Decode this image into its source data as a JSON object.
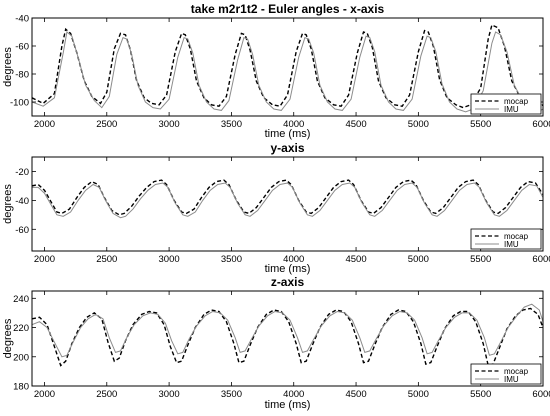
{
  "chart_data": [
    {
      "type": "line",
      "title": "take m2r1t2 - Euler angles - x-axis",
      "xlabel": "time (ms)",
      "ylabel": "degrees",
      "xlim": [
        1900,
        6000
      ],
      "ylim": [
        -110,
        -40
      ],
      "xticks": [
        2000,
        2500,
        3000,
        3500,
        4000,
        4500,
        5000,
        5500,
        6000
      ],
      "yticks": [
        -100,
        -80,
        -60,
        -40
      ],
      "grid": false,
      "legend": {
        "position": "bottom-right",
        "entries": [
          "mocap",
          "IMU"
        ]
      },
      "series": [
        {
          "name": "mocap",
          "style": "dashed",
          "x": [
            1900,
            1990,
            2080,
            2140,
            2170,
            2210,
            2260,
            2320,
            2380,
            2450,
            2500,
            2560,
            2610,
            2650,
            2690,
            2740,
            2800,
            2860,
            2920,
            2980,
            3050,
            3100,
            3130,
            3170,
            3220,
            3280,
            3340,
            3400,
            3460,
            3530,
            3580,
            3610,
            3650,
            3700,
            3760,
            3830,
            3890,
            3950,
            4020,
            4070,
            4100,
            4140,
            4190,
            4250,
            4320,
            4380,
            4440,
            4510,
            4560,
            4590,
            4630,
            4680,
            4740,
            4810,
            4870,
            4930,
            5000,
            5050,
            5080,
            5120,
            5170,
            5230,
            5300,
            5360,
            5420,
            5500,
            5560,
            5590,
            5640,
            5690,
            5750,
            5820,
            5880,
            5950,
            6000
          ],
          "y": [
            -97,
            -101,
            -94,
            -60,
            -48,
            -51,
            -65,
            -85,
            -96,
            -101,
            -93,
            -62,
            -51,
            -52,
            -63,
            -85,
            -97,
            -101,
            -102,
            -95,
            -64,
            -51,
            -52,
            -62,
            -85,
            -97,
            -102,
            -103,
            -96,
            -66,
            -51,
            -52,
            -63,
            -85,
            -97,
            -102,
            -103,
            -95,
            -64,
            -51,
            -52,
            -62,
            -85,
            -97,
            -102,
            -103,
            -95,
            -65,
            -50,
            -51,
            -61,
            -85,
            -97,
            -102,
            -103,
            -95,
            -64,
            -49,
            -50,
            -60,
            -84,
            -97,
            -102,
            -104,
            -102,
            -90,
            -55,
            -45,
            -47,
            -60,
            -85,
            -97,
            -102,
            -104,
            -102
          ]
        },
        {
          "name": "IMU",
          "style": "solid",
          "x": [
            1900,
            1990,
            2080,
            2150,
            2180,
            2220,
            2270,
            2330,
            2400,
            2460,
            2520,
            2580,
            2630,
            2660,
            2700,
            2750,
            2810,
            2870,
            2930,
            3000,
            3070,
            3120,
            3150,
            3190,
            3240,
            3300,
            3360,
            3420,
            3480,
            3550,
            3600,
            3630,
            3670,
            3720,
            3780,
            3840,
            3900,
            3970,
            4040,
            4090,
            4120,
            4160,
            4210,
            4270,
            4330,
            4390,
            4460,
            4530,
            4580,
            4610,
            4650,
            4700,
            4760,
            4820,
            4880,
            4950,
            5020,
            5070,
            5100,
            5140,
            5190,
            5250,
            5310,
            5380,
            5440,
            5520,
            5590,
            5620,
            5660,
            5710,
            5770,
            5840,
            5900,
            5960,
            6000
          ],
          "y": [
            -100,
            -103,
            -97,
            -65,
            -50,
            -53,
            -68,
            -88,
            -99,
            -104,
            -96,
            -66,
            -54,
            -55,
            -66,
            -88,
            -100,
            -104,
            -105,
            -98,
            -68,
            -54,
            -55,
            -65,
            -88,
            -100,
            -105,
            -106,
            -99,
            -70,
            -54,
            -55,
            -66,
            -88,
            -100,
            -105,
            -106,
            -98,
            -68,
            -54,
            -55,
            -65,
            -88,
            -100,
            -105,
            -106,
            -98,
            -68,
            -53,
            -54,
            -64,
            -88,
            -100,
            -105,
            -106,
            -98,
            -67,
            -53,
            -54,
            -64,
            -87,
            -100,
            -105,
            -107,
            -105,
            -92,
            -58,
            -50,
            -52,
            -64,
            -88,
            -100,
            -105,
            -107,
            -105
          ]
        }
      ]
    },
    {
      "type": "line",
      "title": "y-axis",
      "xlabel": "time (ms)",
      "ylabel": "degrees",
      "xlim": [
        1900,
        6000
      ],
      "ylim": [
        -75,
        -10
      ],
      "xticks": [
        2000,
        2500,
        3000,
        3500,
        4000,
        4500,
        5000,
        5500,
        6000
      ],
      "yticks": [
        -60,
        -40,
        -20
      ],
      "grid": false,
      "legend": {
        "position": "bottom-right",
        "entries": [
          "mocap",
          "IMU"
        ]
      },
      "series": [
        {
          "name": "mocap",
          "style": "dashed",
          "x": [
            1900,
            1950,
            2000,
            2060,
            2100,
            2140,
            2200,
            2260,
            2320,
            2380,
            2430,
            2480,
            2540,
            2600,
            2640,
            2700,
            2760,
            2820,
            2880,
            2940,
            2980,
            3040,
            3100,
            3140,
            3200,
            3260,
            3320,
            3380,
            3440,
            3480,
            3540,
            3600,
            3640,
            3700,
            3760,
            3820,
            3880,
            3940,
            3980,
            4040,
            4100,
            4140,
            4200,
            4260,
            4320,
            4380,
            4440,
            4480,
            4540,
            4600,
            4640,
            4700,
            4760,
            4820,
            4880,
            4940,
            4980,
            5040,
            5100,
            5140,
            5200,
            5260,
            5320,
            5380,
            5440,
            5480,
            5540,
            5600,
            5640,
            5700,
            5760,
            5820,
            5880,
            5940,
            6000
          ],
          "y": [
            -30,
            -29,
            -33,
            -42,
            -48,
            -49,
            -46,
            -38,
            -31,
            -27,
            -29,
            -38,
            -47,
            -50,
            -49,
            -44,
            -37,
            -31,
            -27,
            -26,
            -29,
            -40,
            -48,
            -49,
            -46,
            -38,
            -31,
            -27,
            -26,
            -29,
            -40,
            -48,
            -49,
            -45,
            -38,
            -31,
            -27,
            -26,
            -29,
            -40,
            -48,
            -49,
            -45,
            -38,
            -31,
            -27,
            -26,
            -29,
            -40,
            -48,
            -49,
            -45,
            -38,
            -31,
            -27,
            -26,
            -29,
            -40,
            -48,
            -49,
            -45,
            -38,
            -31,
            -27,
            -26,
            -29,
            -40,
            -48,
            -49,
            -45,
            -38,
            -31,
            -27,
            -28,
            -36
          ]
        },
        {
          "name": "IMU",
          "style": "solid",
          "x": [
            1900,
            1950,
            2000,
            2060,
            2100,
            2150,
            2210,
            2270,
            2330,
            2390,
            2440,
            2490,
            2550,
            2610,
            2650,
            2710,
            2770,
            2830,
            2890,
            2950,
            2990,
            3050,
            3110,
            3150,
            3210,
            3270,
            3330,
            3390,
            3450,
            3490,
            3550,
            3610,
            3650,
            3710,
            3770,
            3830,
            3890,
            3950,
            3990,
            4050,
            4110,
            4150,
            4210,
            4270,
            4330,
            4390,
            4450,
            4490,
            4550,
            4610,
            4650,
            4710,
            4770,
            4830,
            4890,
            4950,
            4990,
            5050,
            5110,
            5150,
            5210,
            5270,
            5330,
            5390,
            5450,
            5490,
            5550,
            5610,
            5650,
            5710,
            5770,
            5830,
            5890,
            5950,
            6000
          ],
          "y": [
            -31,
            -31,
            -35,
            -44,
            -50,
            -51,
            -48,
            -40,
            -33,
            -29,
            -31,
            -40,
            -49,
            -52,
            -51,
            -46,
            -39,
            -33,
            -29,
            -28,
            -31,
            -42,
            -50,
            -51,
            -48,
            -40,
            -33,
            -29,
            -28,
            -31,
            -42,
            -50,
            -51,
            -47,
            -40,
            -33,
            -29,
            -28,
            -31,
            -42,
            -50,
            -51,
            -47,
            -40,
            -33,
            -29,
            -28,
            -31,
            -42,
            -50,
            -51,
            -47,
            -40,
            -33,
            -29,
            -28,
            -31,
            -42,
            -50,
            -51,
            -47,
            -40,
            -33,
            -29,
            -28,
            -31,
            -42,
            -50,
            -51,
            -47,
            -40,
            -33,
            -29,
            -30,
            -38
          ]
        }
      ]
    },
    {
      "type": "line",
      "title": "z-axis",
      "xlabel": "time (ms)",
      "ylabel": "degrees",
      "xlim": [
        1900,
        6000
      ],
      "ylim": [
        180,
        245
      ],
      "xticks": [
        2000,
        2500,
        3000,
        3500,
        4000,
        4500,
        5000,
        5500,
        6000
      ],
      "yticks": [
        180,
        200,
        220,
        240
      ],
      "grid": false,
      "legend": {
        "position": "bottom-right",
        "entries": [
          "mocap",
          "IMU"
        ]
      },
      "series": [
        {
          "name": "mocap",
          "style": "dashed",
          "x": [
            1900,
            1960,
            2020,
            2080,
            2130,
            2170,
            2220,
            2280,
            2340,
            2400,
            2460,
            2510,
            2560,
            2600,
            2650,
            2710,
            2780,
            2840,
            2900,
            2960,
            3010,
            3060,
            3100,
            3150,
            3210,
            3280,
            3340,
            3400,
            3460,
            3520,
            3560,
            3600,
            3650,
            3710,
            3780,
            3840,
            3900,
            3960,
            4020,
            4060,
            4100,
            4150,
            4210,
            4280,
            4340,
            4400,
            4460,
            4520,
            4560,
            4600,
            4650,
            4710,
            4780,
            4840,
            4900,
            4960,
            5020,
            5060,
            5100,
            5150,
            5210,
            5280,
            5340,
            5400,
            5460,
            5520,
            5560,
            5600,
            5650,
            5710,
            5780,
            5840,
            5900,
            5960,
            6000
          ],
          "y": [
            226,
            227,
            222,
            207,
            194,
            197,
            209,
            220,
            227,
            230,
            226,
            210,
            197,
            199,
            211,
            222,
            229,
            231,
            230,
            222,
            207,
            196,
            197,
            208,
            220,
            229,
            232,
            231,
            224,
            209,
            196,
            197,
            208,
            220,
            229,
            232,
            231,
            224,
            209,
            196,
            197,
            208,
            220,
            229,
            232,
            231,
            224,
            209,
            196,
            197,
            208,
            220,
            229,
            232,
            231,
            224,
            209,
            195,
            196,
            207,
            219,
            228,
            231,
            231,
            224,
            209,
            194,
            195,
            206,
            219,
            228,
            232,
            233,
            229,
            220
          ]
        },
        {
          "name": "IMU",
          "style": "solid",
          "x": [
            1900,
            1960,
            2020,
            2080,
            2140,
            2180,
            2230,
            2290,
            2350,
            2410,
            2470,
            2520,
            2570,
            2610,
            2660,
            2720,
            2790,
            2850,
            2910,
            2970,
            3020,
            3070,
            3110,
            3160,
            3220,
            3290,
            3350,
            3410,
            3470,
            3530,
            3570,
            3610,
            3660,
            3720,
            3790,
            3850,
            3910,
            3970,
            4030,
            4070,
            4110,
            4160,
            4220,
            4290,
            4350,
            4410,
            4470,
            4530,
            4570,
            4610,
            4660,
            4720,
            4790,
            4850,
            4910,
            4970,
            5030,
            5070,
            5110,
            5160,
            5220,
            5290,
            5350,
            5410,
            5470,
            5530,
            5570,
            5610,
            5660,
            5720,
            5790,
            5850,
            5910,
            5970,
            6000
          ],
          "y": [
            222,
            224,
            220,
            210,
            200,
            201,
            210,
            220,
            226,
            229,
            226,
            213,
            203,
            204,
            213,
            222,
            228,
            230,
            229,
            223,
            211,
            202,
            203,
            212,
            221,
            228,
            231,
            230,
            225,
            213,
            203,
            204,
            212,
            221,
            228,
            231,
            230,
            225,
            213,
            203,
            204,
            212,
            221,
            228,
            231,
            230,
            225,
            213,
            203,
            204,
            212,
            221,
            228,
            231,
            230,
            225,
            213,
            202,
            203,
            211,
            220,
            227,
            230,
            230,
            225,
            213,
            201,
            202,
            210,
            220,
            228,
            234,
            236,
            232,
            224
          ]
        }
      ]
    }
  ]
}
